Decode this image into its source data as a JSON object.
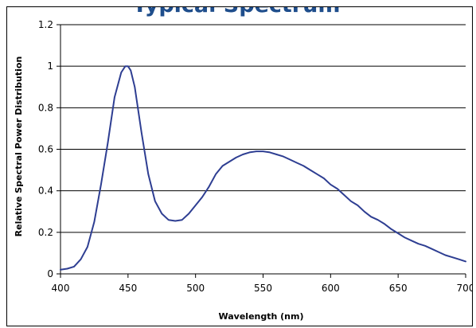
{
  "chart_data": {
    "type": "line",
    "title": "Typical Spectrum",
    "xlabel": "Wavelength (nm)",
    "ylabel": "Relative Spectral Power Distribution",
    "xlim": [
      400,
      700
    ],
    "ylim": [
      0,
      1.2
    ],
    "x_ticks": [
      400,
      450,
      500,
      550,
      600,
      650,
      700
    ],
    "x_tick_labels": [
      "400",
      "450",
      "500",
      "550",
      "600",
      "650",
      "700"
    ],
    "y_ticks": [
      0,
      0.2,
      0.4,
      0.6,
      0.8,
      1.0,
      1.2
    ],
    "y_tick_labels": [
      "0",
      "0.2",
      "0.4",
      "0.6",
      "0.8",
      "1",
      "1.2"
    ],
    "grid": "horizontal",
    "legend": "none",
    "colors": {
      "line": "#2e3e92",
      "title": "#1f4e8c",
      "grid": "#000000"
    },
    "series": [
      {
        "x": [
          400,
          405,
          410,
          415,
          420,
          425,
          430,
          435,
          440,
          445,
          448,
          450,
          452,
          455,
          460,
          465,
          470,
          475,
          480,
          485,
          490,
          495,
          500,
          505,
          510,
          515,
          520,
          525,
          530,
          535,
          540,
          545,
          550,
          555,
          560,
          565,
          570,
          575,
          580,
          585,
          590,
          595,
          600,
          605,
          610,
          615,
          620,
          625,
          630,
          635,
          640,
          645,
          650,
          655,
          660,
          665,
          670,
          675,
          680,
          685,
          690,
          695,
          700
        ],
        "values": [
          0.02,
          0.025,
          0.035,
          0.07,
          0.13,
          0.25,
          0.43,
          0.63,
          0.85,
          0.97,
          1.0,
          1.0,
          0.98,
          0.9,
          0.68,
          0.48,
          0.35,
          0.29,
          0.26,
          0.255,
          0.26,
          0.29,
          0.33,
          0.37,
          0.42,
          0.48,
          0.52,
          0.54,
          0.56,
          0.575,
          0.585,
          0.59,
          0.59,
          0.585,
          0.575,
          0.565,
          0.55,
          0.535,
          0.52,
          0.5,
          0.48,
          0.46,
          0.43,
          0.41,
          0.38,
          0.35,
          0.33,
          0.3,
          0.275,
          0.26,
          0.24,
          0.215,
          0.195,
          0.175,
          0.16,
          0.145,
          0.135,
          0.12,
          0.105,
          0.09,
          0.08,
          0.07,
          0.06
        ]
      }
    ]
  }
}
